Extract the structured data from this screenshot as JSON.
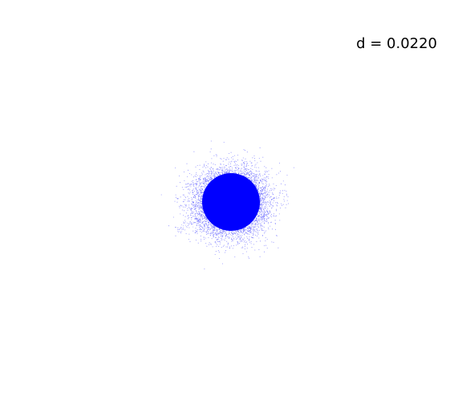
{
  "chart_data": {
    "type": "scatter",
    "annotation": "d = 0.0220",
    "marker_color": "#0000ff",
    "background_color": "#ffffff",
    "axes_visible": false,
    "grid": false,
    "legend": "none",
    "xlim": [
      -1.0,
      1.0
    ],
    "ylim": [
      -1.0,
      1.0
    ],
    "cloud": {
      "center": [
        0.0,
        0.0
      ],
      "core_radius": 0.12,
      "spread_sigma": 0.075,
      "point_count": 22000
    }
  }
}
